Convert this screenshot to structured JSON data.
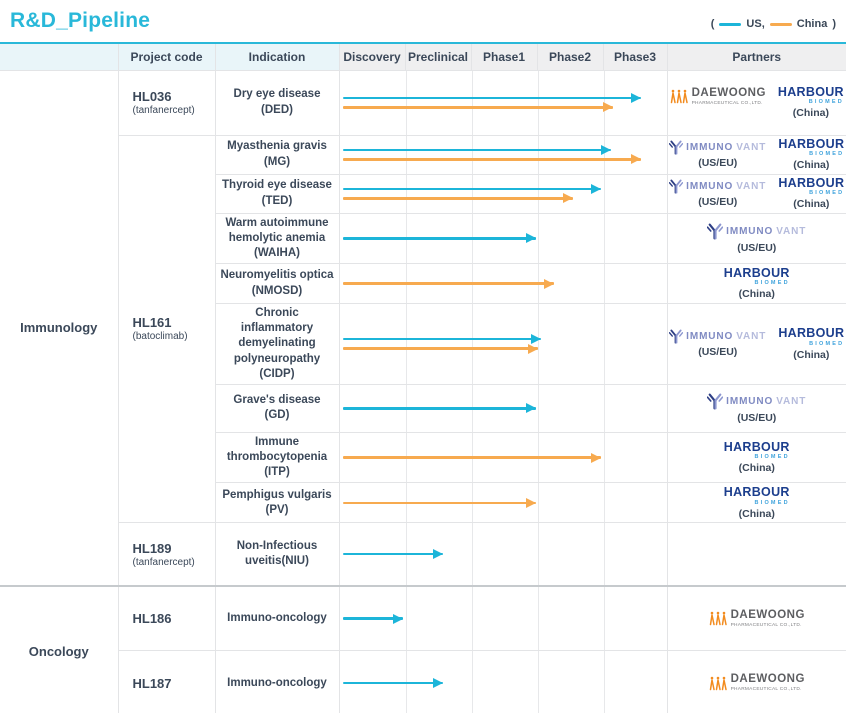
{
  "title": "R&D_Pipeline",
  "legend": {
    "open": "(",
    "us": "US,",
    "china": "China",
    "close": ")"
  },
  "colors": {
    "us": "#1cb5d9",
    "china": "#f7aa4f",
    "accent": "#29b8d9",
    "harbour_navy": "#1c3e8d",
    "harbour_blue": "#3fa3dc",
    "daewoong_orange": "#f28b1e",
    "immunovant_blue": "#7f8ac2"
  },
  "header": {
    "group": "",
    "project_code": "Project code",
    "indication": "Indication",
    "phases": [
      "Discovery",
      "Preclinical",
      "Phase1",
      "Phase2",
      "Phase3"
    ],
    "partners": "Partners"
  },
  "groups": [
    {
      "name": "Immunology"
    },
    {
      "name": "Oncology"
    }
  ],
  "projects": [
    {
      "code": "HL036",
      "sub": "(tanfanercept)"
    },
    {
      "code": "HL161",
      "sub": "(batoclimab)"
    },
    {
      "code": "HL189",
      "sub": "(tanfanercept)"
    },
    {
      "code": "HL186",
      "sub": ""
    },
    {
      "code": "HL187",
      "sub": ""
    }
  ],
  "rows": [
    {
      "indication": "Dry eye disease\n(DED)",
      "partners": [
        "daewoong",
        "harbour"
      ],
      "arrows": [
        {
          "region": "us",
          "len": 298
        },
        {
          "region": "china",
          "len": 270
        }
      ]
    },
    {
      "indication": "Myasthenia gravis\n(MG)",
      "partners": [
        "immunovant",
        "harbour"
      ],
      "arrows": [
        {
          "region": "us",
          "len": 268
        },
        {
          "region": "china",
          "len": 298
        }
      ]
    },
    {
      "indication": "Thyroid eye disease\n(TED)",
      "partners": [
        "immunovant",
        "harbour"
      ],
      "arrows": [
        {
          "region": "us",
          "len": 258
        },
        {
          "region": "china",
          "len": 230
        }
      ]
    },
    {
      "indication": "Warm autoimmune\nhemolytic anemia\n(WAIHA)",
      "partners": [
        "immunovant"
      ],
      "arrows": [
        {
          "region": "us",
          "len": 193
        }
      ]
    },
    {
      "indication": "Neuromyelitis optica\n(NMOSD)",
      "partners": [
        "harbour"
      ],
      "arrows": [
        {
          "region": "china",
          "len": 211
        }
      ]
    },
    {
      "indication": "Chronic inflammatory\ndemyelinating\npolyneuropathy\n(CIDP)",
      "partners": [
        "immunovant",
        "harbour"
      ],
      "arrows": [
        {
          "region": "us",
          "len": 198
        },
        {
          "region": "china",
          "len": 195
        }
      ]
    },
    {
      "indication": "Grave's disease\n(GD)",
      "partners": [
        "immunovant"
      ],
      "arrows": [
        {
          "region": "us",
          "len": 193
        }
      ]
    },
    {
      "indication": "Immune\nthrombocytopenia\n(ITP)",
      "partners": [
        "harbour"
      ],
      "arrows": [
        {
          "region": "china",
          "len": 258
        }
      ]
    },
    {
      "indication": "Pemphigus vulgaris\n(PV)",
      "partners": [
        "harbour"
      ],
      "arrows": [
        {
          "region": "china",
          "len": 193
        }
      ]
    },
    {
      "indication": "Non-Infectious\nuveitis(NIU)",
      "partners": [],
      "arrows": [
        {
          "region": "us",
          "len": 100
        }
      ]
    },
    {
      "indication": "Immuno-oncology",
      "partners": [
        "daewoong"
      ],
      "arrows": [
        {
          "region": "us",
          "len": 60
        }
      ]
    },
    {
      "indication": "Immuno-oncology",
      "partners": [
        "daewoong"
      ],
      "arrows": [
        {
          "region": "us",
          "len": 100
        }
      ]
    }
  ],
  "partner_defs": {
    "daewoong": {
      "name": "DAEWOONG",
      "subtitle": "PHARMACEUTICAL CO.,LTD."
    },
    "harbour": {
      "name": "HARBOUR",
      "subtitle": "BIOMED",
      "region": "(China)"
    },
    "immunovant": {
      "name_a": "IMMUNO",
      "name_b": "VANT",
      "region": "(US/EU)"
    }
  },
  "chart_data": {
    "type": "table",
    "title": "R&D_Pipeline",
    "phase_scale": [
      "Discovery",
      "Preclinical",
      "Phase1",
      "Phase2",
      "Phase3"
    ],
    "units": "phases reached (1.0 = Discovery complete, 5.0 = Phase3 complete)",
    "legend": {
      "US": "#1cb5d9",
      "China": "#f7aa4f"
    },
    "rows": [
      {
        "group": "Immunology",
        "project": "HL036 (tanfanercept)",
        "indication": "Dry eye disease (DED)",
        "US": 4.6,
        "China": 4.2,
        "partners": [
          "Daewoong Pharmaceutical",
          "Harbour BioMed (China)"
        ]
      },
      {
        "group": "Immunology",
        "project": "HL161 (batoclimab)",
        "indication": "Myasthenia gravis (MG)",
        "US": 4.1,
        "China": 4.6,
        "partners": [
          "Immunovant (US/EU)",
          "Harbour BioMed (China)"
        ]
      },
      {
        "group": "Immunology",
        "project": "HL161 (batoclimab)",
        "indication": "Thyroid eye disease (TED)",
        "US": 4.0,
        "China": 3.5,
        "partners": [
          "Immunovant (US/EU)",
          "Harbour BioMed (China)"
        ]
      },
      {
        "group": "Immunology",
        "project": "HL161 (batoclimab)",
        "indication": "Warm autoimmune hemolytic anemia (WAIHA)",
        "US": 3.0,
        "China": null,
        "partners": [
          "Immunovant (US/EU)"
        ]
      },
      {
        "group": "Immunology",
        "project": "HL161 (batoclimab)",
        "indication": "Neuromyelitis optica (NMOSD)",
        "US": null,
        "China": 3.3,
        "partners": [
          "Harbour BioMed (China)"
        ]
      },
      {
        "group": "Immunology",
        "project": "HL161 (batoclimab)",
        "indication": "Chronic inflammatory demyelinating polyneuropathy (CIDP)",
        "US": 3.1,
        "China": 3.0,
        "partners": [
          "Immunovant (US/EU)",
          "Harbour BioMed (China)"
        ]
      },
      {
        "group": "Immunology",
        "project": "HL161 (batoclimab)",
        "indication": "Grave's disease (GD)",
        "US": 3.0,
        "China": null,
        "partners": [
          "Immunovant (US/EU)"
        ]
      },
      {
        "group": "Immunology",
        "project": "HL161 (batoclimab)",
        "indication": "Immune thrombocytopenia (ITP)",
        "US": null,
        "China": 4.0,
        "partners": [
          "Harbour BioMed (China)"
        ]
      },
      {
        "group": "Immunology",
        "project": "HL161 (batoclimab)",
        "indication": "Pemphigus vulgaris (PV)",
        "US": null,
        "China": 3.0,
        "partners": [
          "Harbour BioMed (China)"
        ]
      },
      {
        "group": "Immunology",
        "project": "HL189 (tanfanercept)",
        "indication": "Non-Infectious uveitis(NIU)",
        "US": 1.5,
        "China": null,
        "partners": []
      },
      {
        "group": "Oncology",
        "project": "HL186",
        "indication": "Immuno-oncology",
        "US": 1.0,
        "China": null,
        "partners": [
          "Daewoong Pharmaceutical"
        ]
      },
      {
        "group": "Oncology",
        "project": "HL187",
        "indication": "Immuno-oncology",
        "US": 1.5,
        "China": null,
        "partners": [
          "Daewoong Pharmaceutical"
        ]
      }
    ]
  }
}
